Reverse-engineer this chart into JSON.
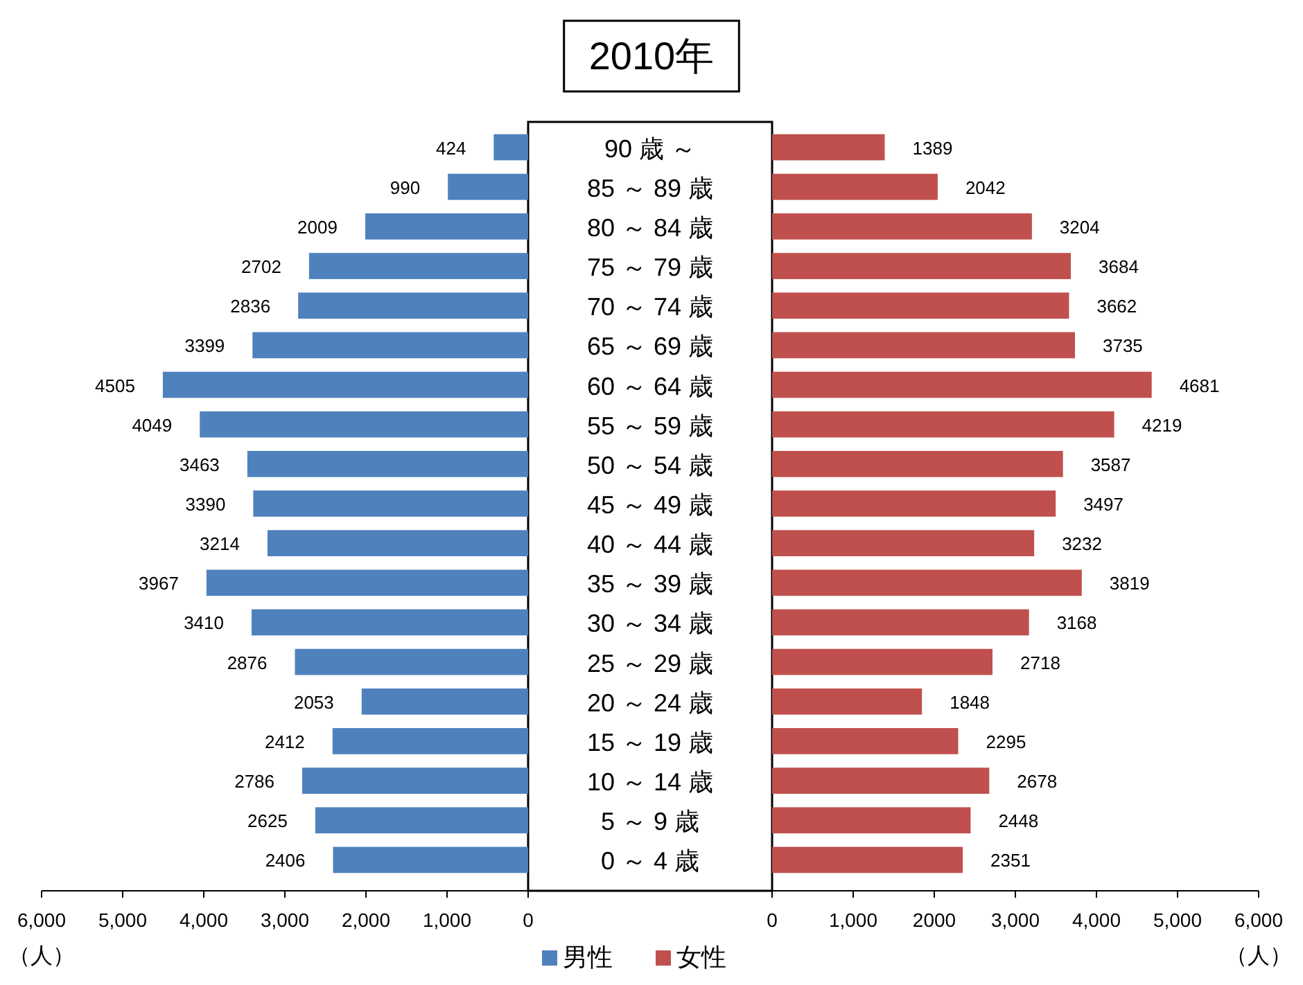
{
  "chart_data": [
    {
      "type": "bar",
      "orientation": "horizontal",
      "title": "2010年",
      "xlabel": "（人）",
      "legend": "bottom",
      "data_labels": true,
      "categories": [
        "90 歳 ～",
        "85 ～ 89 歳",
        "80 ～ 84 歳",
        "75 ～ 79 歳",
        "70 ～ 74 歳",
        "65 ～ 69 歳",
        "60 ～ 64 歳",
        "55 ～ 59 歳",
        "50 ～ 54 歳",
        "45 ～ 49 歳",
        "40 ～ 44 歳",
        "35 ～ 39 歳",
        "30 ～ 34 歳",
        "25 ～ 29 歳",
        "20 ～ 24 歳",
        "15 ～ 19 歳",
        "10 ～ 14 歳",
        "5 ～ 9 歳",
        "0 ～ 4 歳"
      ],
      "series": [
        {
          "name": "男性",
          "color": "#4f81bd",
          "values": [
            424,
            990,
            2009,
            2702,
            2836,
            3399,
            4505,
            4049,
            3463,
            3390,
            3214,
            3967,
            3410,
            2876,
            2053,
            2412,
            2786,
            2625,
            2406
          ]
        }
      ],
      "xlim": [
        6000,
        0
      ],
      "xticks": [
        {
          "value": 6000,
          "label": "6,000"
        },
        {
          "value": 5000,
          "label": "5,000"
        },
        {
          "value": 4000,
          "label": "4,000"
        },
        {
          "value": 3000,
          "label": "3,000"
        },
        {
          "value": 2000,
          "label": "2,000"
        },
        {
          "value": 1000,
          "label": "1,000"
        },
        {
          "value": 0,
          "label": "0"
        }
      ]
    },
    {
      "type": "bar",
      "orientation": "horizontal",
      "xlabel": "（人）",
      "legend": "bottom",
      "data_labels": true,
      "tick_labels": "x",
      "categories": [
        "90 歳 ～",
        "85 ～ 89 歳",
        "80 ～ 84 歳",
        "75 ～ 79 歳",
        "70 ～ 74 歳",
        "65 ～ 69 歳",
        "60 ～ 64 歳",
        "55 ～ 59 歳",
        "50 ～ 54 歳",
        "45 ～ 49 歳",
        "40 ～ 44 歳",
        "35 ～ 39 歳",
        "30 ～ 34 歳",
        "25 ～ 29 歳",
        "20 ～ 24 歳",
        "15 ～ 19 歳",
        "10 ～ 14 歳",
        "5 ～ 9 歳",
        "0 ～ 4 歳"
      ],
      "series": [
        {
          "name": "女性",
          "color": "#c0504d",
          "values": [
            1389,
            2042,
            3204,
            3684,
            3662,
            3735,
            4681,
            4219,
            3587,
            3497,
            3232,
            3819,
            3168,
            2718,
            1848,
            2295,
            2678,
            2448,
            2351
          ]
        }
      ],
      "xlim": [
        0,
        6000
      ],
      "xticks": [
        {
          "value": 0,
          "label": "0"
        },
        {
          "value": 1000,
          "label": "1,000"
        },
        {
          "value": 2000,
          "label": "2000"
        },
        {
          "value": 3000,
          "label": "3,000"
        },
        {
          "value": 4000,
          "label": "4,000"
        },
        {
          "value": 5000,
          "label": "5,000"
        },
        {
          "value": 6000,
          "label": "6,000"
        }
      ]
    }
  ]
}
